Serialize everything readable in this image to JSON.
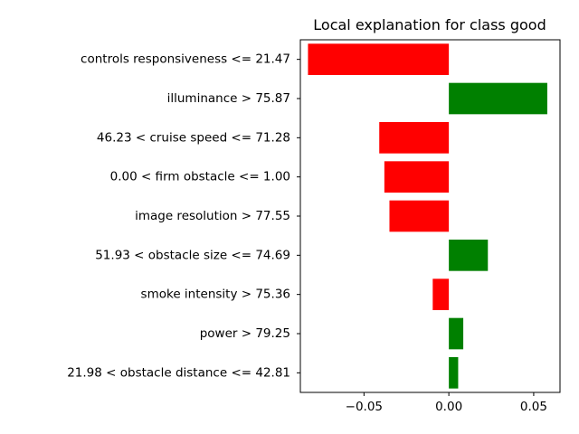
{
  "chart_data": {
    "type": "bar",
    "orientation": "horizontal",
    "title": "Local explanation for class good",
    "xlabel": "",
    "ylabel": "",
    "xlim": [
      -0.0875,
      0.0655
    ],
    "xticks": [
      -0.05,
      0.0,
      0.05
    ],
    "xtick_labels": [
      "−0.05",
      "0.00",
      "0.05"
    ],
    "grid": false,
    "categories": [
      "controls responsiveness <= 21.47",
      "illuminance > 75.87",
      "46.23 < cruise speed <= 71.28",
      "0.00 < firm obstacle <= 1.00",
      "image resolution > 77.55",
      "51.93 < obstacle size <= 74.69",
      "smoke intensity > 75.36",
      "power > 79.25",
      "21.98 < obstacle distance <= 42.81"
    ],
    "values": [
      -0.083,
      0.058,
      -0.041,
      -0.038,
      -0.035,
      0.023,
      -0.0095,
      0.0085,
      0.0055
    ],
    "colors": {
      "positive": "#008000",
      "negative": "#ff0000"
    }
  }
}
